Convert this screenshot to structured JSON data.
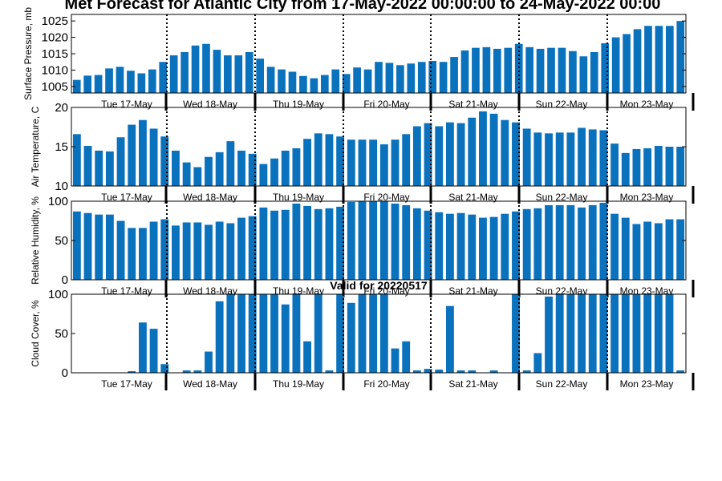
{
  "title": "Met Forecast for Atlantic City from 17-May-2022 00:00:00 to 24-May-2022 00:00",
  "colors": {
    "bar": "#0a72bd",
    "axis": "#000000"
  },
  "days": [
    "Tue 17-May",
    "Wed 18-May",
    "Thu 19-May",
    "Fri 20-May",
    "Sat 21-May",
    "Sun 22-May",
    "Mon 23-May"
  ],
  "chart_data": [
    {
      "type": "bar",
      "ylabel": "Surface Pressure, mb",
      "ylim": [
        1003,
        1027
      ],
      "yticks": [
        1005,
        1010,
        1015,
        1020,
        1025
      ],
      "values": [
        1007,
        1008.3,
        1008.5,
        1010.5,
        1011,
        1009.8,
        1009,
        1010.2,
        1012.5,
        1014.5,
        1015.5,
        1017.5,
        1018,
        1016.2,
        1014.5,
        1014.5,
        1015.5,
        1013.5,
        1011,
        1010.2,
        1009.5,
        1008.2,
        1007.5,
        1008.5,
        1010.2,
        1008.8,
        1010.8,
        1010.2,
        1012.5,
        1012.2,
        1011.5,
        1012,
        1012.5,
        1012.8,
        1012.5,
        1014,
        1016,
        1016.8,
        1017,
        1016.5,
        1016.8,
        1018,
        1017,
        1016.5,
        1016.8,
        1016.8,
        1015.8,
        1014.2,
        1015.5,
        1018.2,
        1020,
        1021,
        1022.5,
        1023.5,
        1023.5,
        1023.5,
        1025
      ]
    },
    {
      "type": "bar",
      "ylabel": "Air Temperature, C",
      "ylim": [
        10,
        20
      ],
      "yticks": [
        10,
        15,
        20
      ],
      "values": [
        16.6,
        15.1,
        14.5,
        14.4,
        16.2,
        17.8,
        18.4,
        17.3,
        16.3,
        14.5,
        13,
        12.4,
        13.7,
        14.3,
        15.7,
        14.5,
        14.1,
        12.8,
        13.5,
        14.5,
        14.8,
        16,
        16.7,
        16.6,
        16.3,
        15.9,
        15.9,
        15.9,
        15.3,
        15.9,
        16.6,
        17.6,
        18,
        17.6,
        18.1,
        18,
        18.7,
        19.5,
        19.2,
        18.4,
        18.1,
        17.3,
        16.8,
        16.7,
        16.8,
        16.8,
        17.4,
        17.2,
        17.1,
        15.4,
        14.2,
        14.7,
        14.8,
        15.1,
        15,
        15
      ]
    },
    {
      "type": "bar",
      "ylabel": "Relative Humidity, %",
      "ylim": [
        0,
        100
      ],
      "yticks": [
        0,
        50,
        100
      ],
      "values": [
        87,
        85,
        83,
        83,
        75,
        66,
        66,
        74,
        77,
        69,
        73,
        73,
        70,
        74,
        72,
        79,
        81,
        92,
        88,
        89,
        97,
        94,
        90,
        91,
        93,
        99,
        100,
        100,
        100,
        97,
        95,
        91,
        88,
        86,
        84,
        85,
        83,
        79,
        80,
        84,
        87,
        90,
        91,
        95,
        95,
        95,
        92,
        95,
        98,
        84,
        79,
        71,
        74,
        72,
        77,
        77
      ]
    },
    {
      "type": "bar",
      "title": "Valid for 20220517",
      "ylabel": "Cloud Cover, %",
      "ylim": [
        0,
        100
      ],
      "yticks": [
        0,
        50,
        100
      ],
      "values": [
        0,
        0,
        0,
        0,
        0,
        2,
        64,
        56,
        11,
        0,
        3,
        3,
        27,
        91,
        100,
        100,
        100,
        100,
        100,
        87,
        100,
        40,
        100,
        3,
        100,
        89,
        100,
        100,
        100,
        31,
        40,
        3,
        5,
        4,
        85,
        3,
        3,
        0,
        3,
        0,
        100,
        3,
        25,
        97,
        100,
        100,
        100,
        100,
        100,
        100,
        100,
        100,
        100,
        100,
        100,
        3
      ]
    }
  ]
}
